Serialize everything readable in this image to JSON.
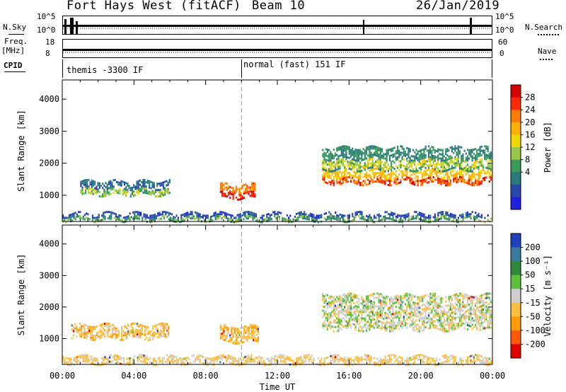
{
  "header": {
    "station": "Fort Hays West (fitACF)",
    "beam": "Beam 10",
    "date": "26/Jan/2019"
  },
  "panels": {
    "sky_label": "N.Sky",
    "search_label": "N.Search",
    "freq_label": "Freq.",
    "freq_unit": "[MHz]",
    "nave_label": "Nave",
    "cpid_label": "CPID",
    "sky_ticks": [
      "10^5",
      "10^0"
    ],
    "search_ticks": [
      "10^5",
      "10^0"
    ],
    "freq_ticks": [
      "18",
      "8"
    ],
    "nave_ticks": [
      "60",
      "0"
    ],
    "cpid_1": "themis -3300 IF",
    "cpid_2": "normal (fast) 151 IF"
  },
  "chart_data": [
    {
      "type": "heatmap",
      "title": "",
      "xlabel": "Time UT",
      "ylabel": "Slant Range [km]",
      "xlim": [
        "00:00",
        "24:00"
      ],
      "ylim": [
        180,
        4600
      ],
      "x_ticks": [
        "00:00",
        "04:00",
        "08:00",
        "12:00",
        "16:00",
        "20:00",
        "00:00"
      ],
      "y_ticks": [
        1000,
        2000,
        3000,
        4000
      ],
      "colorbar": {
        "label": "Power [dB]",
        "ticks": [
          "28",
          "24",
          "20",
          "16",
          "12",
          "8",
          "4"
        ],
        "colors": [
          "#d40000",
          "#ff2a00",
          "#ff7a00",
          "#ffb000",
          "#f0d800",
          "#9cc84a",
          "#3a9a5a",
          "#2a7a7a",
          "#2848b0",
          "#2020e0"
        ]
      },
      "features": [
        {
          "name": "early band",
          "x_hours": [
            1.0,
            6.0
          ],
          "range_km": [
            1000,
            1450
          ],
          "power_db": 10
        },
        {
          "name": "midday echo",
          "x_hours": [
            8.8,
            10.8
          ],
          "range_km": [
            900,
            1350
          ],
          "power_db": 26
        },
        {
          "name": "post-dawn band",
          "x_hours": [
            14.5,
            24.0
          ],
          "range_km": [
            1350,
            1800
          ],
          "power_db": 22
        },
        {
          "name": "diffuse upper band",
          "x_hours": [
            14.5,
            24.0
          ],
          "range_km": [
            1800,
            2500
          ],
          "power_db": 12
        },
        {
          "name": "ground band",
          "x_hours": [
            0.0,
            24.0
          ],
          "range_km": [
            200,
            450
          ],
          "power_db": 8
        }
      ]
    },
    {
      "type": "heatmap",
      "title": "",
      "xlabel": "Time UT",
      "ylabel": "Slant Range [km]",
      "xlim": [
        "00:00",
        "24:00"
      ],
      "ylim": [
        180,
        4600
      ],
      "x_ticks": [
        "00:00",
        "04:00",
        "08:00",
        "12:00",
        "16:00",
        "20:00",
        "00:00"
      ],
      "y_ticks": [
        1000,
        2000,
        3000,
        4000
      ],
      "colorbar": {
        "label": "Velocity [m s^-1]",
        "ticks": [
          "200",
          "100",
          "50",
          "15",
          "-15",
          "-50",
          "-100",
          "-200"
        ],
        "colors": [
          "#2040c0",
          "#3a7a9a",
          "#2e8a3a",
          "#5cc03a",
          "#cfcfcf",
          "#ffc040",
          "#ff9a00",
          "#ff5a00",
          "#e00000"
        ]
      },
      "features": [
        {
          "name": "early band",
          "x_hours": [
            0.5,
            6.0
          ],
          "range_km": [
            1000,
            1450
          ],
          "velocity": -30
        },
        {
          "name": "midday echo",
          "x_hours": [
            8.8,
            11.0
          ],
          "range_km": [
            900,
            1400
          ],
          "velocity": -40
        },
        {
          "name": "late band",
          "x_hours": [
            14.5,
            24.0
          ],
          "range_km": [
            1300,
            2400
          ],
          "velocity": 0
        },
        {
          "name": "ground band",
          "x_hours": [
            0.0,
            24.0
          ],
          "range_km": [
            200,
            450
          ],
          "velocity": -20
        }
      ]
    }
  ]
}
